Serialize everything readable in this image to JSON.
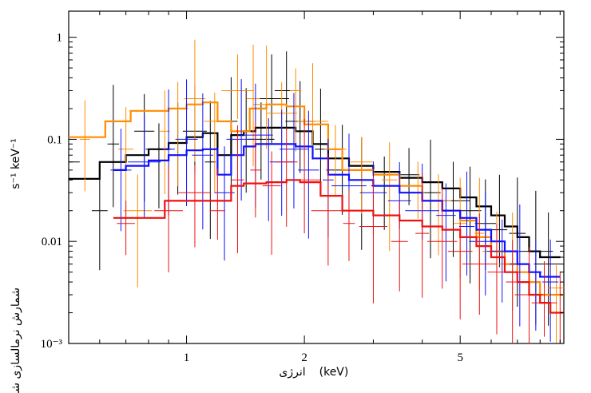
{
  "chart_data": {
    "type": "line",
    "title": "",
    "xlabel": "انرژی",
    "xlabel_unit": "(keV)",
    "ylabel_fa": "شمارش نرمالسازی شده",
    "ylabel_unit_text": "s⁻¹ keV⁻¹",
    "x_scale": "log",
    "y_scale": "log",
    "xlim": [
      0.5,
      9.2
    ],
    "ylim": [
      0.001,
      1.8
    ],
    "x_ticks": [
      1,
      2,
      5
    ],
    "x_tick_labels": [
      "1",
      "2",
      "5"
    ],
    "y_ticks": [
      0.001,
      0.01,
      0.1,
      1
    ],
    "y_tick_labels": [
      "10⁻³",
      "0.01",
      "0.1",
      "1"
    ],
    "grid": false,
    "legend": "none",
    "series": [
      {
        "color": "#000000",
        "model": {
          "x": [
            0.5,
            0.6,
            0.7,
            0.8,
            0.9,
            1.0,
            1.1,
            1.2,
            1.3,
            1.4,
            1.5,
            1.7,
            1.9,
            2.1,
            2.3,
            2.6,
            3.0,
            3.5,
            4.0,
            4.5,
            5.0,
            5.5,
            6.0,
            6.5,
            7.0,
            7.5,
            8.0,
            8.5
          ],
          "y": [
            0.041,
            0.06,
            0.07,
            0.08,
            0.092,
            0.105,
            0.115,
            0.07,
            0.11,
            0.12,
            0.13,
            0.13,
            0.12,
            0.09,
            0.065,
            0.055,
            0.048,
            0.042,
            0.038,
            0.033,
            0.027,
            0.022,
            0.018,
            0.014,
            0.011,
            0.008,
            0.007,
            0.007
          ]
        },
        "data": {
          "x": [
            0.5,
            0.6,
            0.65,
            0.78,
            0.85,
            0.95,
            1.05,
            1.15,
            1.3,
            1.42,
            1.55,
            1.65,
            1.8,
            1.95,
            2.2,
            2.5,
            2.8,
            3.2,
            3.7,
            4.2,
            4.8,
            5.3,
            5.8,
            6.3,
            7.0,
            7.8,
            8.4
          ],
          "y": [
            0.06,
            0.02,
            0.09,
            0.12,
            0.08,
            0.07,
            0.12,
            0.06,
            0.15,
            0.12,
            0.1,
            0.25,
            0.3,
            0.15,
            0.08,
            0.05,
            0.04,
            0.035,
            0.045,
            0.03,
            0.025,
            0.02,
            0.015,
            0.013,
            0.012,
            0.008,
            0.006
          ]
        }
      },
      {
        "color": "#ff8c00",
        "model": {
          "x": [
            0.5,
            0.62,
            0.72,
            0.8,
            0.9,
            1.0,
            1.1,
            1.2,
            1.3,
            1.45,
            1.6,
            1.8,
            2.0,
            2.3,
            2.5,
            3.0,
            3.5,
            4.0,
            4.5,
            5.0,
            5.5,
            6.0,
            6.5,
            7.0,
            7.5,
            8.0,
            8.5,
            9.2
          ],
          "y": [
            0.105,
            0.15,
            0.19,
            0.19,
            0.2,
            0.22,
            0.23,
            0.15,
            0.12,
            0.2,
            0.22,
            0.21,
            0.14,
            0.08,
            0.05,
            0.045,
            0.035,
            0.025,
            0.02,
            0.016,
            0.011,
            0.008,
            0.006,
            0.005,
            0.004,
            0.003,
            0.003,
            0.003
          ]
        },
        "data": {
          "x": [
            0.55,
            0.7,
            0.75,
            0.88,
            0.95,
            1.05,
            1.18,
            1.35,
            1.48,
            1.6,
            1.75,
            1.9,
            2.1,
            2.4,
            2.8,
            3.3,
            3.9,
            4.4,
            5.0,
            5.6,
            6.2,
            6.8,
            7.5,
            8.2,
            8.8
          ],
          "y": [
            0.1,
            0.08,
            0.02,
            0.12,
            0.2,
            0.25,
            0.15,
            0.3,
            0.25,
            0.22,
            0.18,
            0.3,
            0.15,
            0.08,
            0.06,
            0.04,
            0.03,
            0.025,
            0.015,
            0.012,
            0.008,
            0.006,
            0.004,
            0.003,
            0.0035
          ]
        }
      },
      {
        "color": "#1010ff",
        "model": {
          "x": [
            0.65,
            0.7,
            0.8,
            0.9,
            1.0,
            1.1,
            1.2,
            1.3,
            1.4,
            1.5,
            1.7,
            1.9,
            2.1,
            2.3,
            2.6,
            3.0,
            3.5,
            4.0,
            4.5,
            5.0,
            5.5,
            6.0,
            6.5,
            7.0,
            7.5,
            8.0,
            8.5
          ],
          "y": [
            0.05,
            0.055,
            0.062,
            0.07,
            0.078,
            0.08,
            0.045,
            0.07,
            0.085,
            0.09,
            0.09,
            0.085,
            0.065,
            0.045,
            0.04,
            0.035,
            0.03,
            0.025,
            0.02,
            0.017,
            0.013,
            0.01,
            0.008,
            0.006,
            0.005,
            0.0045,
            0.0045
          ]
        },
        "data": {
          "x": [
            0.68,
            0.78,
            0.9,
            1.0,
            1.1,
            1.25,
            1.38,
            1.5,
            1.62,
            1.75,
            1.88,
            2.05,
            2.3,
            2.6,
            3.0,
            3.5,
            4.0,
            4.6,
            5.2,
            5.8,
            6.4,
            7.1,
            7.8,
            8.5
          ],
          "y": [
            0.05,
            0.06,
            0.08,
            0.1,
            0.07,
            0.03,
            0.1,
            0.11,
            0.09,
            0.06,
            0.08,
            0.05,
            0.04,
            0.035,
            0.03,
            0.025,
            0.02,
            0.018,
            0.014,
            0.01,
            0.008,
            0.006,
            0.005,
            0.004
          ]
        }
      },
      {
        "color": "#ee1111",
        "model": {
          "x": [
            0.65,
            0.88,
            1.3,
            1.4,
            1.6,
            1.8,
            1.95,
            2.2,
            2.5,
            3.0,
            3.5,
            4.0,
            4.5,
            5.0,
            5.5,
            6.0,
            6.5,
            7.0,
            7.5,
            8.0,
            8.5,
            9.2
          ],
          "y": [
            0.017,
            0.025,
            0.035,
            0.037,
            0.038,
            0.04,
            0.038,
            0.028,
            0.02,
            0.018,
            0.016,
            0.014,
            0.013,
            0.011,
            0.009,
            0.007,
            0.005,
            0.004,
            0.003,
            0.0025,
            0.002,
            0.002
          ]
        },
        "data": {
          "x": [
            0.7,
            0.9,
            1.05,
            1.2,
            1.35,
            1.5,
            1.65,
            1.8,
            2.0,
            2.3,
            2.6,
            3.0,
            3.5,
            4.0,
            4.5,
            5.0,
            5.6,
            6.2,
            6.8,
            7.5,
            8.2,
            9.0
          ],
          "y": [
            0.015,
            0.02,
            0.03,
            0.02,
            0.04,
            0.05,
            0.035,
            0.06,
            0.04,
            0.02,
            0.015,
            0.014,
            0.01,
            0.012,
            0.01,
            0.008,
            0.006,
            0.005,
            0.004,
            0.003,
            0.0025,
            0.002
          ]
        }
      }
    ]
  }
}
